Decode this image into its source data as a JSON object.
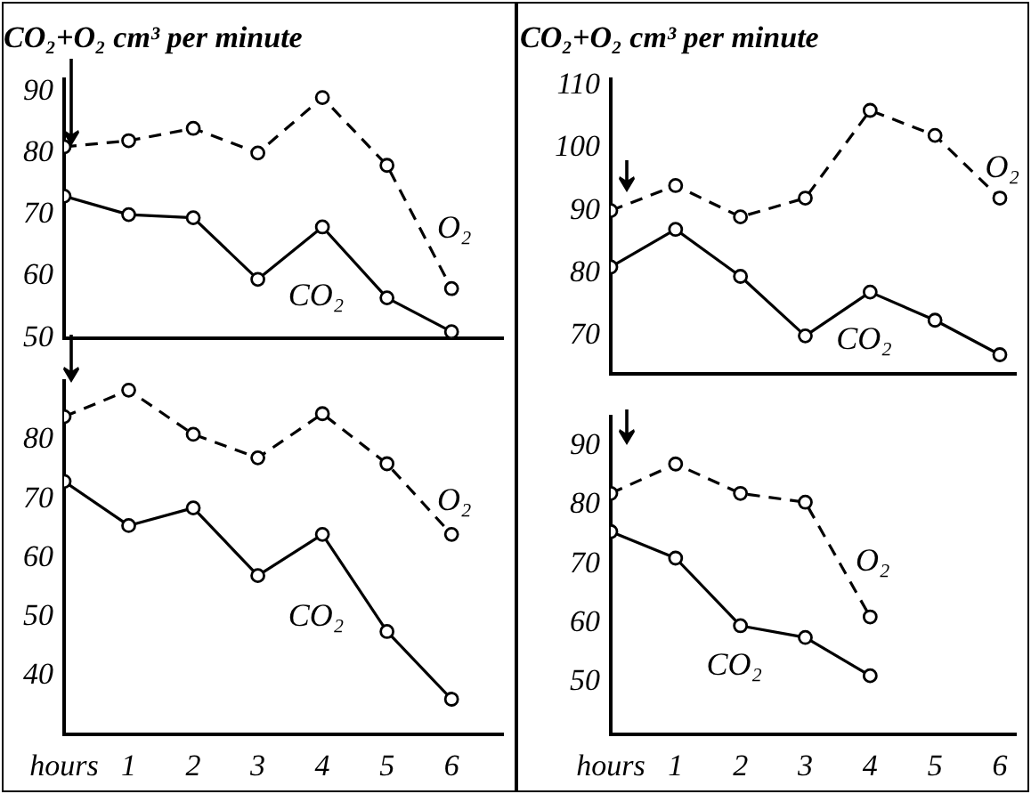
{
  "chart_data": [
    {
      "type": "line",
      "title": "CO₂+O₂ cm³ per minute",
      "x": [
        0,
        1,
        2,
        3,
        4,
        5,
        6
      ],
      "xlim": [
        0,
        6.8
      ],
      "ylim": [
        50,
        92
      ],
      "yticks": [
        50,
        60,
        70,
        80,
        90
      ],
      "tick_labels": "y",
      "grid": false,
      "marker": "circle",
      "series": [
        {
          "name": "O₂",
          "color": "#000000",
          "line_style": "dashed",
          "values": [
            81,
            82,
            84,
            80,
            89,
            78,
            58
          ]
        },
        {
          "name": "CO₂",
          "color": "#000000",
          "line_style": "solid",
          "values": [
            73,
            70,
            69.5,
            59.5,
            68,
            56.5,
            51
          ]
        }
      ]
    },
    {
      "type": "line",
      "x": [
        0,
        1,
        2,
        3,
        4,
        5,
        6
      ],
      "xlim": [
        0,
        6.8
      ],
      "ylim": [
        30,
        90
      ],
      "xticks": [
        {
          "value": 0,
          "label": "hours"
        },
        1,
        2,
        3,
        4,
        5,
        6
      ],
      "yticks": [
        40,
        50,
        60,
        70,
        80
      ],
      "grid": false,
      "marker": "circle",
      "series": [
        {
          "name": "O₂",
          "color": "#000000",
          "line_style": "dashed",
          "values": [
            84,
            88.5,
            81,
            77,
            84.5,
            76,
            64
          ]
        },
        {
          "name": "CO₂",
          "color": "#000000",
          "line_style": "solid",
          "values": [
            73,
            65.5,
            68.5,
            57,
            64,
            47.5,
            36
          ]
        }
      ]
    },
    {
      "type": "line",
      "title": "CO₂+O₂ cm³ per minute",
      "x": [
        0,
        1,
        2,
        3,
        4,
        5,
        6
      ],
      "xlim": [
        0,
        6.25
      ],
      "ylim": [
        64,
        111
      ],
      "yticks": [
        70,
        80,
        90,
        100,
        110
      ],
      "tick_labels": "y",
      "grid": false,
      "marker": "circle",
      "series": [
        {
          "name": "O₂",
          "color": "#000000",
          "line_style": "dashed",
          "values": [
            90,
            94,
            89,
            92,
            106,
            102,
            92
          ]
        },
        {
          "name": "CO₂",
          "color": "#000000",
          "line_style": "solid",
          "values": [
            81,
            87,
            79.5,
            70,
            77,
            72.5,
            67
          ]
        }
      ]
    },
    {
      "type": "line",
      "x": [
        0,
        1,
        2,
        3,
        4
      ],
      "xlim": [
        0,
        6.25
      ],
      "ylim": [
        41,
        95
      ],
      "xticks": [
        {
          "value": 0,
          "label": "hours"
        },
        1,
        2,
        3,
        4,
        5,
        6
      ],
      "yticks": [
        50,
        60,
        70,
        80,
        90
      ],
      "grid": false,
      "marker": "circle",
      "series": [
        {
          "name": "O₂",
          "color": "#000000",
          "line_style": "dashed",
          "values": [
            82,
            87,
            82,
            80.5,
            61
          ]
        },
        {
          "name": "CO₂",
          "color": "#000000",
          "line_style": "solid",
          "values": [
            75.5,
            71,
            59.5,
            57.5,
            51
          ]
        }
      ]
    }
  ]
}
